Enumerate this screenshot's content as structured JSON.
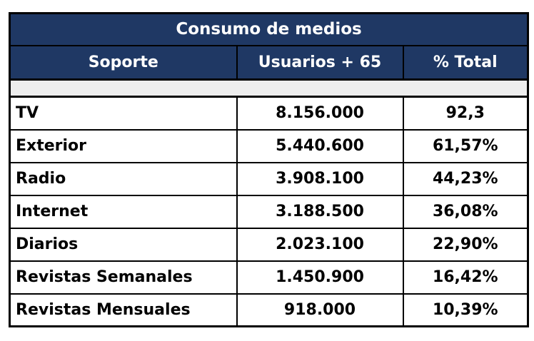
{
  "table": {
    "title": "Consumo de medios",
    "headers": {
      "soporte": "Soporte",
      "usuarios": "Usuarios + 65",
      "pct": "% Total"
    },
    "rows": [
      {
        "soporte": "TV",
        "usuarios": "8.156.000",
        "pct": "92,3"
      },
      {
        "soporte": "Exterior",
        "usuarios": "5.440.600",
        "pct": "61,57%"
      },
      {
        "soporte": "Radio",
        "usuarios": "3.908.100",
        "pct": "44,23%"
      },
      {
        "soporte": "Internet",
        "usuarios": "3.188.500",
        "pct": "36,08%"
      },
      {
        "soporte": "Diarios",
        "usuarios": "2.023.100",
        "pct": "22,90%"
      },
      {
        "soporte": "Revistas Semanales",
        "usuarios": "1.450.900",
        "pct": "16,42%"
      },
      {
        "soporte": "Revistas Mensuales",
        "usuarios": "918.000",
        "pct": "10,39%"
      }
    ]
  },
  "colors": {
    "header_bg": "#1F3864",
    "header_text": "#FFFFFF",
    "spacer_bg": "#EDEDED",
    "border": "#000000",
    "body_text": "#000000",
    "page_bg": "#FFFFFF"
  },
  "chart_data": {
    "type": "table",
    "title": "Consumo de medios",
    "columns": [
      "Soporte",
      "Usuarios + 65",
      "% Total"
    ],
    "rows": [
      [
        "TV",
        "8.156.000",
        "92,3"
      ],
      [
        "Exterior",
        "5.440.600",
        "61,57%"
      ],
      [
        "Radio",
        "3.908.100",
        "44,23%"
      ],
      [
        "Internet",
        "3.188.500",
        "36,08%"
      ],
      [
        "Diarios",
        "2.023.100",
        "22,90%"
      ],
      [
        "Revistas Semanales",
        "1.450.900",
        "16,42%"
      ],
      [
        "Revistas Mensuales",
        "918.000",
        "10,39%"
      ]
    ],
    "values_numeric": {
      "usuarios_65": [
        8156000,
        5440600,
        3908100,
        3188500,
        2023100,
        1450900,
        918000
      ],
      "pct_total": [
        92.3,
        61.57,
        44.23,
        36.08,
        22.9,
        16.42,
        10.39
      ]
    }
  }
}
